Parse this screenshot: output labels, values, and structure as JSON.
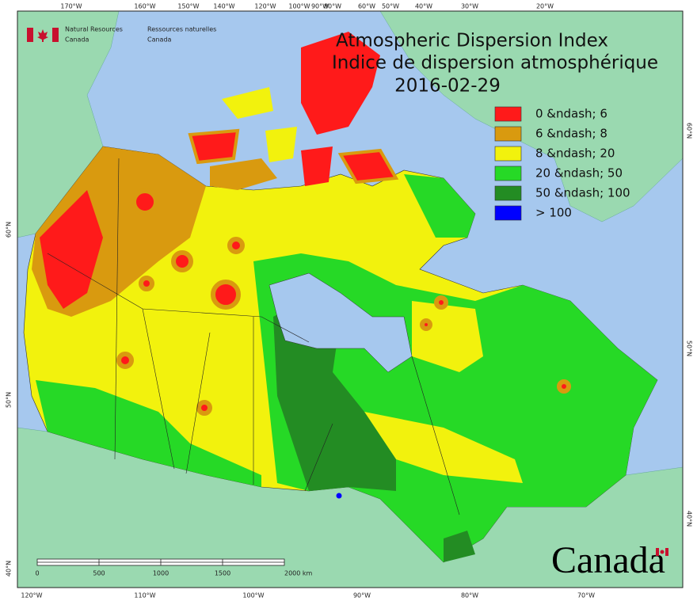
{
  "header": {
    "agency_en": [
      "Natural Resources",
      "Canada"
    ],
    "agency_fr": [
      "Ressources naturelles",
      "Canada"
    ]
  },
  "title": [
    "Atmospheric Dispersion Index",
    "Indice de dispersion atmosphérique",
    "2016-02-29"
  ],
  "legend": [
    {
      "label": "0 &ndash; 6",
      "color": "#ff1a1a"
    },
    {
      "label": "6 &ndash; 8",
      "color": "#d99a0f"
    },
    {
      "label": "8 &ndash; 20",
      "color": "#f2f20d"
    },
    {
      "label": "20 &ndash; 50",
      "color": "#26d926"
    },
    {
      "label": "50 &ndash; 100",
      "color": "#238c23"
    },
    {
      "label": "> 100",
      "color": "#0000ff"
    }
  ],
  "graticule": {
    "top": [
      "170°W",
      "160°W",
      "150°W",
      "140°W",
      "120°W",
      "100°W",
      "90°W",
      "80°W",
      "60°W",
      "50°W",
      "40°W",
      "30°W",
      "20°W"
    ],
    "bottom": [
      "120°W",
      "110°W",
      "100°W",
      "90°W",
      "80°W",
      "70°W"
    ],
    "left": [
      "60°N",
      "50°N",
      "40°N"
    ],
    "right": [
      "60°N",
      "50°N",
      "40°N"
    ]
  },
  "scale_bar": [
    "0",
    "500",
    "1000",
    "1500",
    "2000 km"
  ],
  "wordmark": "Canada"
}
